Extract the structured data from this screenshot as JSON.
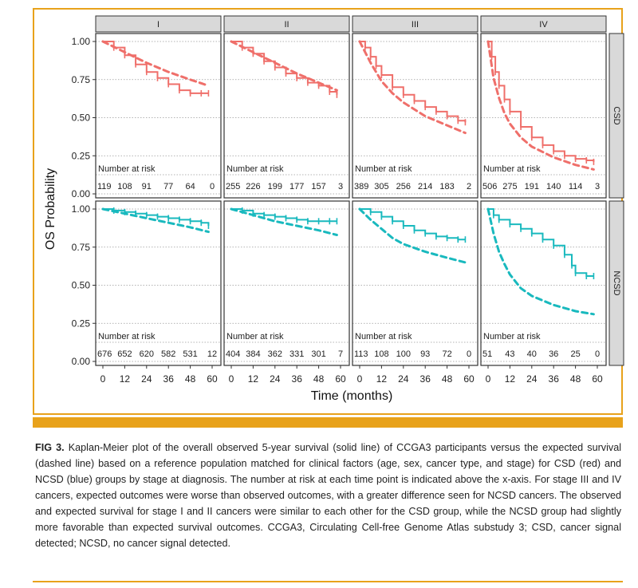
{
  "chart_data": {
    "type": "line",
    "ylabel": "OS Probability",
    "xlabel": "Time (months)",
    "xlim": [
      0,
      60
    ],
    "ylim": [
      0,
      1
    ],
    "x_ticks": [
      "0",
      "12",
      "24",
      "36",
      "48",
      "60"
    ],
    "y_ticks": [
      "0.00",
      "0.25",
      "0.50",
      "0.75",
      "1.00"
    ],
    "columns": [
      "I",
      "II",
      "III",
      "IV"
    ],
    "rows": [
      "CSD",
      "NCSD"
    ],
    "colors": {
      "CSD": "#ef6f6a",
      "NCSD": "#19b9be"
    },
    "risk_label": "Number at risk",
    "risk_times": [
      0,
      12,
      24,
      36,
      48,
      60
    ],
    "panels": [
      {
        "row": "CSD",
        "stage": "I",
        "observed": [
          [
            0,
            1.0
          ],
          [
            6,
            0.96
          ],
          [
            12,
            0.91
          ],
          [
            18,
            0.85
          ],
          [
            24,
            0.8
          ],
          [
            30,
            0.76
          ],
          [
            36,
            0.72
          ],
          [
            42,
            0.68
          ],
          [
            48,
            0.66
          ],
          [
            54,
            0.66
          ],
          [
            58,
            0.66
          ]
        ],
        "expected": [
          [
            0,
            1.0
          ],
          [
            12,
            0.93
          ],
          [
            24,
            0.86
          ],
          [
            36,
            0.8
          ],
          [
            48,
            0.75
          ],
          [
            58,
            0.71
          ]
        ],
        "at_risk": [
          "119",
          "108",
          "91",
          "77",
          "64",
          "0"
        ]
      },
      {
        "row": "CSD",
        "stage": "II",
        "observed": [
          [
            0,
            1.0
          ],
          [
            6,
            0.96
          ],
          [
            12,
            0.92
          ],
          [
            18,
            0.87
          ],
          [
            24,
            0.83
          ],
          [
            30,
            0.79
          ],
          [
            36,
            0.76
          ],
          [
            42,
            0.73
          ],
          [
            48,
            0.71
          ],
          [
            54,
            0.67
          ],
          [
            58,
            0.65
          ]
        ],
        "expected": [
          [
            0,
            1.0
          ],
          [
            12,
            0.93
          ],
          [
            24,
            0.86
          ],
          [
            36,
            0.79
          ],
          [
            48,
            0.73
          ],
          [
            58,
            0.68
          ]
        ],
        "at_risk": [
          "255",
          "226",
          "199",
          "177",
          "157",
          "3"
        ]
      },
      {
        "row": "CSD",
        "stage": "III",
        "observed": [
          [
            0,
            1.0
          ],
          [
            3,
            0.96
          ],
          [
            6,
            0.9
          ],
          [
            9,
            0.84
          ],
          [
            12,
            0.78
          ],
          [
            18,
            0.7
          ],
          [
            24,
            0.65
          ],
          [
            30,
            0.61
          ],
          [
            36,
            0.57
          ],
          [
            42,
            0.54
          ],
          [
            48,
            0.51
          ],
          [
            54,
            0.48
          ],
          [
            58,
            0.47
          ]
        ],
        "expected": [
          [
            0,
            1.0
          ],
          [
            6,
            0.86
          ],
          [
            12,
            0.74
          ],
          [
            18,
            0.66
          ],
          [
            24,
            0.6
          ],
          [
            36,
            0.51
          ],
          [
            48,
            0.45
          ],
          [
            58,
            0.4
          ]
        ],
        "at_risk": [
          "389",
          "305",
          "256",
          "214",
          "183",
          "2"
        ]
      },
      {
        "row": "CSD",
        "stage": "IV",
        "observed": [
          [
            0,
            1.0
          ],
          [
            2,
            0.9
          ],
          [
            4,
            0.8
          ],
          [
            6,
            0.71
          ],
          [
            9,
            0.62
          ],
          [
            12,
            0.54
          ],
          [
            18,
            0.44
          ],
          [
            24,
            0.37
          ],
          [
            30,
            0.32
          ],
          [
            36,
            0.28
          ],
          [
            42,
            0.25
          ],
          [
            48,
            0.23
          ],
          [
            54,
            0.22
          ],
          [
            58,
            0.21
          ]
        ],
        "expected": [
          [
            0,
            1.0
          ],
          [
            3,
            0.76
          ],
          [
            6,
            0.63
          ],
          [
            9,
            0.53
          ],
          [
            12,
            0.46
          ],
          [
            18,
            0.37
          ],
          [
            24,
            0.31
          ],
          [
            36,
            0.24
          ],
          [
            48,
            0.19
          ],
          [
            58,
            0.16
          ]
        ],
        "at_risk": [
          "506",
          "275",
          "191",
          "140",
          "114",
          "3"
        ]
      },
      {
        "row": "NCSD",
        "stage": "I",
        "observed": [
          [
            0,
            1.0
          ],
          [
            6,
            0.99
          ],
          [
            12,
            0.98
          ],
          [
            18,
            0.97
          ],
          [
            24,
            0.96
          ],
          [
            30,
            0.95
          ],
          [
            36,
            0.94
          ],
          [
            42,
            0.93
          ],
          [
            48,
            0.92
          ],
          [
            54,
            0.91
          ],
          [
            58,
            0.89
          ]
        ],
        "expected": [
          [
            0,
            1.0
          ],
          [
            12,
            0.97
          ],
          [
            24,
            0.94
          ],
          [
            36,
            0.91
          ],
          [
            48,
            0.88
          ],
          [
            58,
            0.85
          ]
        ],
        "at_risk": [
          "676",
          "652",
          "620",
          "582",
          "531",
          "12"
        ]
      },
      {
        "row": "NCSD",
        "stage": "II",
        "observed": [
          [
            0,
            1.0
          ],
          [
            6,
            0.99
          ],
          [
            12,
            0.97
          ],
          [
            18,
            0.96
          ],
          [
            24,
            0.95
          ],
          [
            30,
            0.94
          ],
          [
            36,
            0.93
          ],
          [
            42,
            0.92
          ],
          [
            48,
            0.92
          ],
          [
            54,
            0.92
          ],
          [
            58,
            0.92
          ]
        ],
        "expected": [
          [
            0,
            1.0
          ],
          [
            12,
            0.96
          ],
          [
            24,
            0.92
          ],
          [
            36,
            0.89
          ],
          [
            48,
            0.86
          ],
          [
            58,
            0.83
          ]
        ],
        "at_risk": [
          "404",
          "384",
          "362",
          "331",
          "301",
          "7"
        ]
      },
      {
        "row": "NCSD",
        "stage": "III",
        "observed": [
          [
            0,
            1.0
          ],
          [
            6,
            0.98
          ],
          [
            12,
            0.95
          ],
          [
            18,
            0.92
          ],
          [
            24,
            0.89
          ],
          [
            30,
            0.86
          ],
          [
            36,
            0.84
          ],
          [
            42,
            0.82
          ],
          [
            48,
            0.81
          ],
          [
            54,
            0.8
          ],
          [
            58,
            0.8
          ]
        ],
        "expected": [
          [
            0,
            1.0
          ],
          [
            6,
            0.93
          ],
          [
            12,
            0.87
          ],
          [
            18,
            0.81
          ],
          [
            24,
            0.77
          ],
          [
            36,
            0.72
          ],
          [
            48,
            0.68
          ],
          [
            58,
            0.65
          ]
        ],
        "at_risk": [
          "113",
          "108",
          "100",
          "93",
          "72",
          "0"
        ]
      },
      {
        "row": "NCSD",
        "stage": "IV",
        "observed": [
          [
            0,
            1.0
          ],
          [
            3,
            0.96
          ],
          [
            6,
            0.93
          ],
          [
            12,
            0.9
          ],
          [
            18,
            0.87
          ],
          [
            24,
            0.84
          ],
          [
            30,
            0.8
          ],
          [
            36,
            0.76
          ],
          [
            42,
            0.7
          ],
          [
            46,
            0.63
          ],
          [
            48,
            0.58
          ],
          [
            54,
            0.56
          ],
          [
            58,
            0.56
          ]
        ],
        "expected": [
          [
            0,
            1.0
          ],
          [
            3,
            0.84
          ],
          [
            6,
            0.72
          ],
          [
            9,
            0.64
          ],
          [
            12,
            0.57
          ],
          [
            18,
            0.48
          ],
          [
            24,
            0.43
          ],
          [
            36,
            0.37
          ],
          [
            48,
            0.33
          ],
          [
            58,
            0.31
          ]
        ],
        "at_risk": [
          "51",
          "43",
          "40",
          "36",
          "25",
          "0"
        ]
      }
    ]
  },
  "caption": {
    "lead": "FIG 3.",
    "body": "Kaplan-Meier plot of the overall observed 5-year survival (solid line) of CCGA3 participants versus the expected survival (dashed line) based on a reference population matched for clinical factors (age, sex, cancer type, and stage) for CSD (red) and NCSD (blue) groups by stage at diagnosis. The number at risk at each time point is indicated above the x-axis. For stage III and IV cancers, expected outcomes were worse than observed outcomes, with a greater difference seen for NCSD cancers. The observed and expected survival for stage I and II cancers were similar to each other for the CSD group, while the NCSD group had slightly more favorable than expected survival outcomes. CCGA3, Circulating Cell-free Genome Atlas substudy 3; CSD, cancer signal detected; NCSD, no cancer signal detected."
  }
}
